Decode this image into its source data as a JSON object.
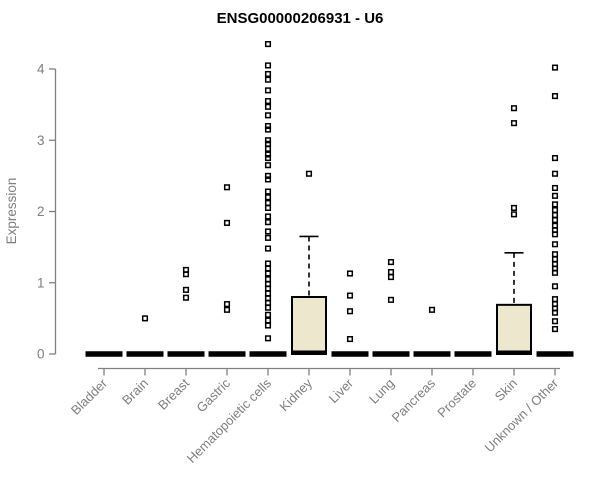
{
  "page": {
    "background": "#ffffff"
  },
  "chart_data": {
    "type": "box",
    "title": "ENSG00000206931 - U6",
    "ylabel": "Expression",
    "xlabel": "",
    "ylim": [
      0,
      4.4
    ],
    "yticks": [
      0,
      1,
      2,
      3,
      4
    ],
    "grid": false,
    "legend": false,
    "categories": [
      "Bladder",
      "Brain",
      "Breast",
      "Gastric",
      "Hematopoietic cells",
      "Kidney",
      "Liver",
      "Lung",
      "Pancreas",
      "Prostate",
      "Skin",
      "Unknown / Other"
    ],
    "series": [
      {
        "category": "Bladder",
        "q1": 0,
        "median": 0,
        "q3": 0,
        "whisker_low": 0,
        "whisker_high": 0,
        "outliers": []
      },
      {
        "category": "Brain",
        "q1": 0,
        "median": 0,
        "q3": 0,
        "whisker_low": 0,
        "whisker_high": 0,
        "outliers": [
          0.5
        ]
      },
      {
        "category": "Breast",
        "q1": 0,
        "median": 0,
        "q3": 0,
        "whisker_low": 0,
        "whisker_high": 0,
        "outliers": [
          1.18,
          1.12,
          0.9,
          0.79
        ]
      },
      {
        "category": "Gastric",
        "q1": 0,
        "median": 0,
        "q3": 0,
        "whisker_low": 0,
        "whisker_high": 0,
        "outliers": [
          2.34,
          1.84,
          0.7,
          0.62
        ]
      },
      {
        "category": "Hematopoietic cells",
        "q1": 0,
        "median": 0,
        "q3": 0,
        "whisker_low": 0,
        "whisker_high": 0,
        "outliers": [
          4.35,
          4.05,
          3.93,
          3.85,
          3.7,
          3.55,
          3.47,
          3.35,
          3.2,
          3.15,
          3.0,
          2.95,
          2.88,
          2.8,
          2.75,
          2.65,
          2.5,
          2.45,
          2.28,
          2.2,
          2.12,
          2.05,
          1.93,
          1.85,
          1.72,
          1.63,
          1.48,
          1.27,
          1.2,
          1.13,
          1.05,
          0.98,
          0.92,
          0.85,
          0.78,
          0.72,
          0.65,
          0.55,
          0.47,
          0.4,
          0.22
        ]
      },
      {
        "category": "Kidney",
        "q1": 0,
        "median": 0,
        "q3": 0.8,
        "whisker_low": 0,
        "whisker_high": 1.65,
        "outliers": [
          2.53
        ]
      },
      {
        "category": "Liver",
        "q1": 0,
        "median": 0,
        "q3": 0,
        "whisker_low": 0,
        "whisker_high": 0,
        "outliers": [
          1.13,
          0.82,
          0.6,
          0.21
        ]
      },
      {
        "category": "Lung",
        "q1": 0,
        "median": 0,
        "q3": 0,
        "whisker_low": 0,
        "whisker_high": 0,
        "outliers": [
          1.29,
          1.15,
          1.08,
          0.76
        ]
      },
      {
        "category": "Pancreas",
        "q1": 0,
        "median": 0,
        "q3": 0,
        "whisker_low": 0,
        "whisker_high": 0,
        "outliers": [
          0.62
        ]
      },
      {
        "category": "Prostate",
        "q1": 0,
        "median": 0,
        "q3": 0,
        "whisker_low": 0,
        "whisker_high": 0,
        "outliers": []
      },
      {
        "category": "Skin",
        "q1": 0,
        "median": 0,
        "q3": 0.69,
        "whisker_low": 0,
        "whisker_high": 1.42,
        "outliers": [
          3.45,
          3.24,
          2.05,
          1.96
        ]
      },
      {
        "category": "Unknown / Other",
        "q1": 0,
        "median": 0,
        "q3": 0,
        "whisker_low": 0,
        "whisker_high": 0,
        "outliers": [
          4.02,
          3.62,
          2.75,
          2.53,
          2.33,
          2.22,
          2.1,
          2.02,
          1.95,
          1.88,
          1.8,
          1.74,
          1.68,
          1.54,
          1.4,
          1.33,
          1.26,
          1.2,
          1.14,
          0.95,
          0.77,
          0.7,
          0.64,
          0.58,
          0.46,
          0.35
        ]
      }
    ],
    "colors": {
      "background": "#ffffff",
      "box_fill": "#EDE8CD",
      "box_border": "#000000",
      "median": "#000000",
      "whisker": "#000000",
      "outlier": "#000000",
      "axis": "#808080",
      "tick_text": "#7e7e7e",
      "title": "#000000"
    }
  }
}
